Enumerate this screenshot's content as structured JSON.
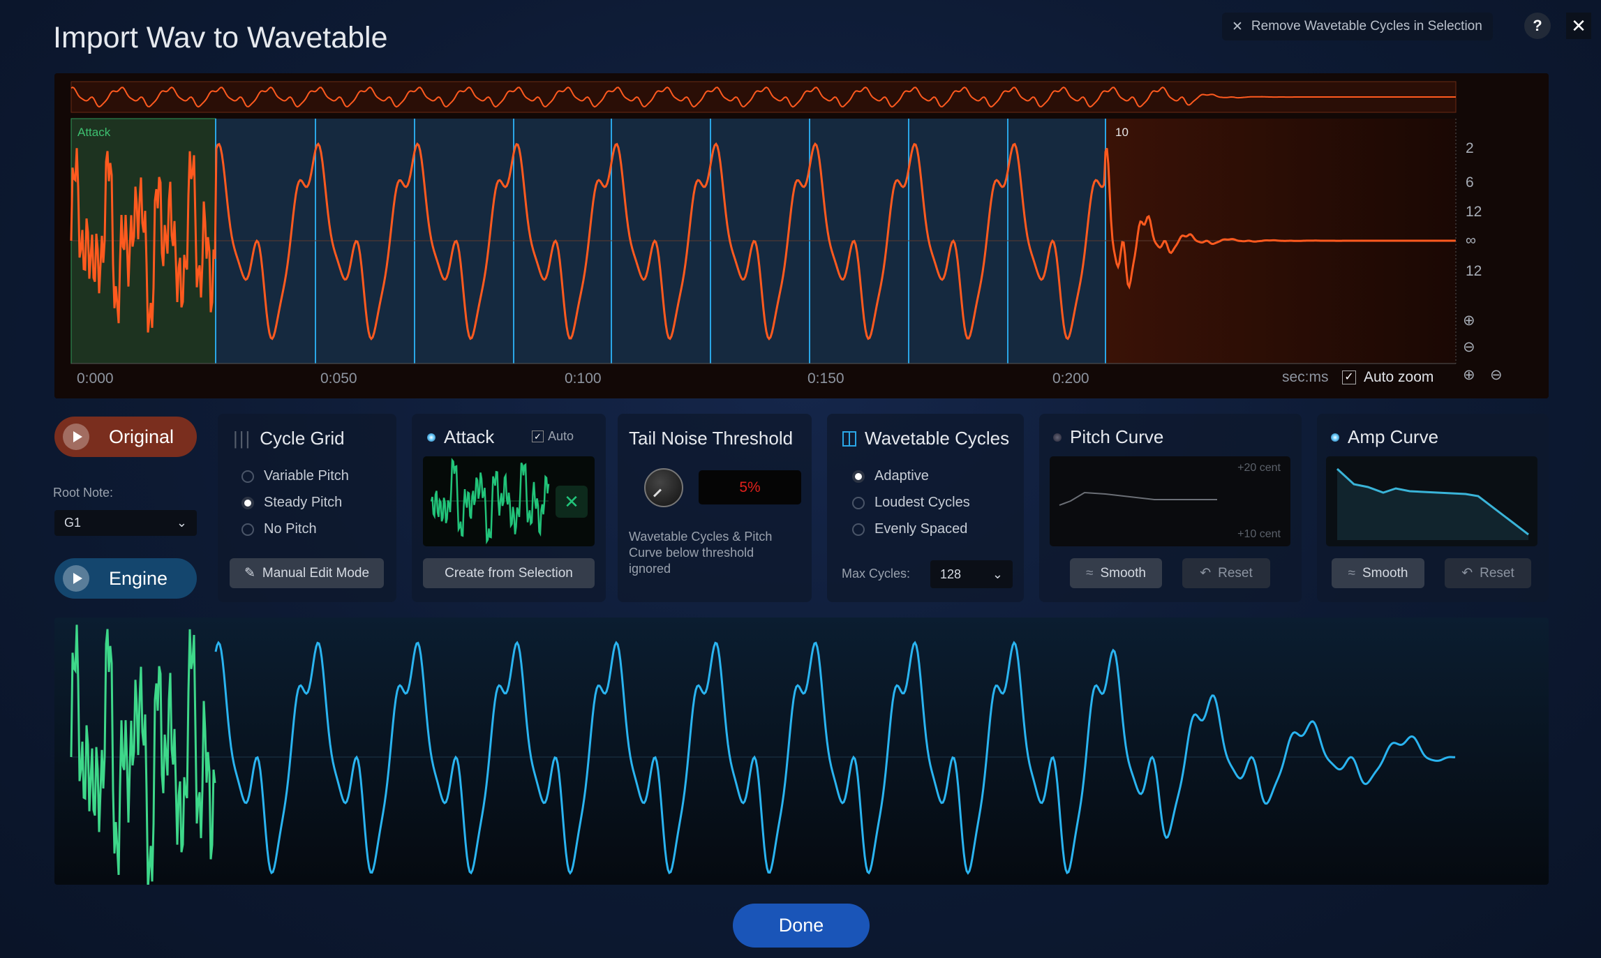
{
  "window": {
    "title": "Import Wav to Wavetable",
    "remove_button": "Remove Wavetable Cycles in Selection",
    "help_label": "?",
    "close_icon": "close-icon"
  },
  "waveform": {
    "attack_label": "Attack",
    "cycle_count_label": "10",
    "time_ticks": [
      "0:000",
      "0:050",
      "0:100",
      "0:150",
      "0:200"
    ],
    "amp_scale": [
      "2",
      "6",
      "12",
      "∞",
      "12"
    ],
    "units_label": "sec:ms",
    "auto_zoom_label": "Auto zoom",
    "auto_zoom_checked": true,
    "colors": {
      "waveform": "#ff5a1f",
      "attack": "#2a4a2a",
      "cycles": "#1c3a5a",
      "cycle_lines": "#2aa6e6"
    }
  },
  "playback": {
    "original_label": "Original",
    "engine_label": "Engine",
    "root_note_label": "Root Note:",
    "root_note_value": "G1",
    "original_color": "#7a2e1e",
    "engine_color": "#14466e"
  },
  "cycle_grid": {
    "title": "Cycle Grid",
    "options": [
      "Variable Pitch",
      "Steady Pitch",
      "No Pitch"
    ],
    "selected": "Steady Pitch",
    "manual_edit_label": "Manual Edit Mode"
  },
  "attack": {
    "title": "Attack",
    "auto_label": "Auto",
    "auto_checked": true,
    "create_label": "Create from Selection"
  },
  "tail_noise": {
    "title": "Tail Noise Threshold",
    "value": "5%",
    "description": "Wavetable Cycles & Pitch Curve below threshold ignored"
  },
  "wavetable_cycles": {
    "title": "Wavetable Cycles",
    "options": [
      "Adaptive",
      "Loudest Cycles",
      "Evenly Spaced"
    ],
    "selected": "Adaptive",
    "max_cycles_label": "Max Cycles:",
    "max_cycles_value": "128"
  },
  "pitch_curve": {
    "title": "Pitch Curve",
    "top_label": "+20 cent",
    "bottom_label": "+10 cent",
    "smooth_label": "Smooth",
    "reset_label": "Reset"
  },
  "amp_curve": {
    "title": "Amp Curve",
    "smooth_label": "Smooth",
    "reset_label": "Reset"
  },
  "footer": {
    "done_label": "Done"
  }
}
